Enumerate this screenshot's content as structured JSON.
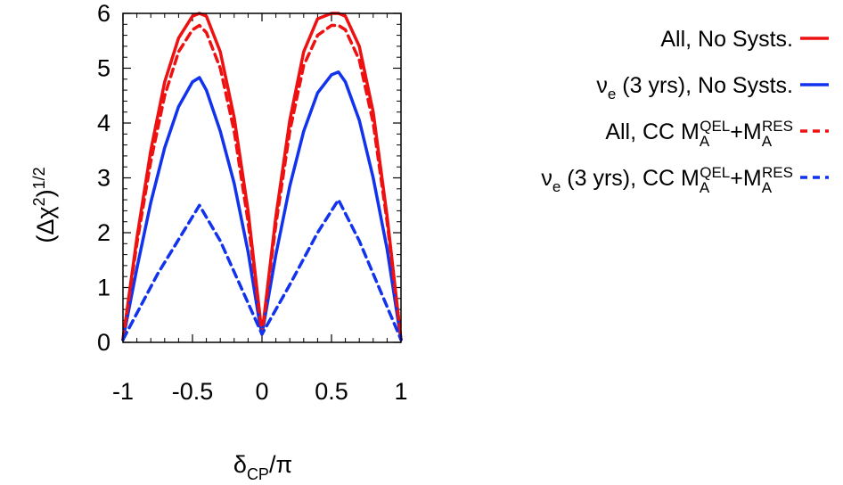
{
  "chart_data": {
    "type": "line",
    "xlabel": "δCP/π",
    "ylabel": "(Δχ²)^1/2",
    "xlim": [
      -1,
      1
    ],
    "ylim": [
      0,
      6
    ],
    "x_ticks": [
      "-1",
      "-0.5",
      "0",
      "0.5",
      "1"
    ],
    "y_ticks": [
      "0",
      "1",
      "2",
      "3",
      "4",
      "5",
      "6"
    ],
    "legend_position": "right, outside plot",
    "grid": false,
    "series": [
      {
        "name": "All, No Systs.",
        "color": "#ee1111",
        "dash": "solid",
        "x": [
          -1,
          -0.9,
          -0.8,
          -0.7,
          -0.6,
          -0.5,
          -0.45,
          -0.4,
          -0.3,
          -0.2,
          -0.1,
          -0.02,
          0,
          0.1,
          0.2,
          0.3,
          0.4,
          0.5,
          0.55,
          0.6,
          0.7,
          0.8,
          0.9,
          1
        ],
        "y": [
          0.05,
          1.9,
          3.5,
          4.75,
          5.55,
          5.95,
          6.0,
          5.95,
          5.3,
          4.1,
          2.4,
          0.6,
          0.15,
          2.3,
          4.05,
          5.3,
          5.9,
          6.0,
          6.0,
          5.95,
          5.4,
          4.2,
          2.3,
          0.05
        ]
      },
      {
        "name": "νe (3 yrs), No Systs.",
        "color": "#1133ee",
        "dash": "solid",
        "x": [
          -1,
          -0.9,
          -0.8,
          -0.7,
          -0.6,
          -0.5,
          -0.45,
          -0.4,
          -0.3,
          -0.2,
          -0.1,
          -0.02,
          0,
          0.1,
          0.2,
          0.3,
          0.4,
          0.5,
          0.55,
          0.6,
          0.7,
          0.8,
          0.9,
          1
        ],
        "y": [
          0.05,
          1.35,
          2.55,
          3.55,
          4.3,
          4.75,
          4.83,
          4.6,
          3.85,
          2.9,
          1.65,
          0.4,
          0.15,
          1.6,
          2.85,
          3.85,
          4.55,
          4.88,
          4.93,
          4.75,
          4.05,
          3.0,
          1.7,
          0.05
        ]
      },
      {
        "name": "All, CC MA^QEL+MA^RES",
        "color": "#ee1111",
        "dash": "dashed",
        "x": [
          -1,
          -0.9,
          -0.8,
          -0.7,
          -0.6,
          -0.5,
          -0.45,
          -0.4,
          -0.3,
          -0.2,
          -0.1,
          -0.02,
          0,
          0.1,
          0.2,
          0.3,
          0.4,
          0.5,
          0.55,
          0.6,
          0.7,
          0.8,
          0.9,
          1
        ],
        "y": [
          0.05,
          1.8,
          3.3,
          4.5,
          5.3,
          5.7,
          5.78,
          5.65,
          5.0,
          3.85,
          2.2,
          0.55,
          0.15,
          2.15,
          3.85,
          5.05,
          5.6,
          5.78,
          5.78,
          5.7,
          5.15,
          4.0,
          2.2,
          0.05
        ]
      },
      {
        "name": "νe (3 yrs), CC MA^QEL+MA^RES",
        "color": "#1133ee",
        "dash": "dashed",
        "x": [
          -1,
          -0.75,
          -0.45,
          -0.3,
          -0.15,
          0,
          0.2,
          0.4,
          0.55,
          0.7,
          0.85,
          1
        ],
        "y": [
          0.05,
          1.25,
          2.5,
          1.85,
          1.0,
          0.15,
          1.05,
          2.0,
          2.6,
          1.85,
          0.95,
          0.05
        ]
      }
    ]
  },
  "legend": [
    {
      "prefix": "All, No Systs.",
      "color": "#ee1111",
      "dash": "solid"
    },
    {
      "prefix": "νe (3 yrs), No Systs.",
      "color": "#1133ee",
      "dash": "solid"
    },
    {
      "prefix": "All, CC MA^QEL+MA^RES",
      "color": "#ee1111",
      "dash": "dashed"
    },
    {
      "prefix": "νe (3 yrs), CC MA^QEL+MA^RES",
      "color": "#1133ee",
      "dash": "dashed"
    }
  ]
}
